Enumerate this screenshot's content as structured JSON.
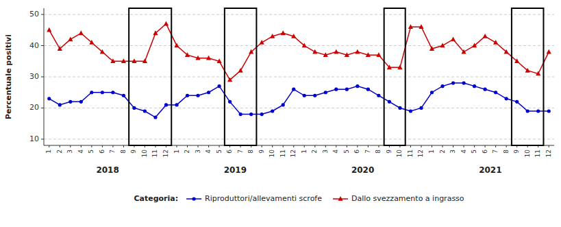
{
  "chart_data": {
    "type": "line",
    "ylabel": "Percentuale positivi",
    "ylim": [
      8,
      52
    ],
    "yticks": [
      10,
      20,
      30,
      40,
      50
    ],
    "grid": true,
    "legend": "bottom",
    "legend_title": "Categoria:",
    "years": [
      2018,
      2019,
      2020,
      2021
    ],
    "categories": [
      "1",
      "2",
      "3",
      "4",
      "5",
      "6",
      "7",
      "8",
      "9",
      "10",
      "11",
      "12",
      "1",
      "2",
      "3",
      "4",
      "5",
      "6",
      "7",
      "8",
      "9",
      "10",
      "11",
      "12",
      "1",
      "2",
      "3",
      "4",
      "5",
      "6",
      "7",
      "8",
      "9",
      "10",
      "11",
      "12",
      "1",
      "2",
      "3",
      "4",
      "5",
      "6",
      "7",
      "8",
      "9",
      "10",
      "11",
      "12"
    ],
    "series": [
      {
        "name": "Riproduttori/allevamenti scrofe",
        "color": "#0000cc",
        "marker": "circle",
        "line_style": "solid",
        "values": [
          23,
          21,
          22,
          22,
          25,
          25,
          25,
          24,
          20,
          19,
          17,
          21,
          21,
          24,
          24,
          25,
          27,
          22,
          18,
          18,
          18,
          19,
          21,
          26,
          24,
          24,
          25,
          26,
          26,
          27,
          26,
          24,
          22,
          20,
          19,
          20,
          25,
          27,
          28,
          28,
          27,
          26,
          25,
          23,
          22,
          19,
          19,
          19
        ]
      },
      {
        "name": "Dallo svezzamento a ingrasso",
        "color": "#cc0000",
        "marker": "triangle",
        "line_style": "solid",
        "values": [
          45,
          39,
          42,
          44,
          41,
          38,
          35,
          35,
          35,
          35,
          44,
          47,
          40,
          37,
          36,
          36,
          35,
          29,
          32,
          38,
          41,
          43,
          44,
          43,
          40,
          38,
          37,
          38,
          37,
          38,
          37,
          37,
          33,
          33,
          46,
          46,
          39,
          40,
          42,
          38,
          40,
          43,
          41,
          38,
          35,
          32,
          31,
          38
        ]
      }
    ],
    "box_regions": [
      {
        "year": 2018,
        "month_start": 9,
        "month_end": 12
      },
      {
        "year": 2019,
        "month_start": 6,
        "month_end": 8
      },
      {
        "year": 2020,
        "month_start": 9,
        "month_end": 10
      },
      {
        "year": 2021,
        "month_start": 9,
        "month_end": 11
      }
    ]
  }
}
